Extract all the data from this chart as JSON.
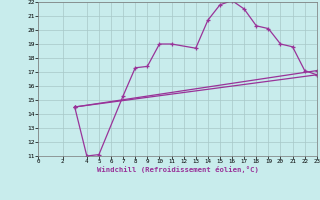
{
  "xlabel": "Windchill (Refroidissement éolien,°C)",
  "bg_color": "#c8ecec",
  "grid_color": "#a8c8c8",
  "line_color": "#993399",
  "xlim": [
    0,
    23
  ],
  "ylim": [
    11,
    22
  ],
  "xticks": [
    0,
    2,
    4,
    5,
    6,
    7,
    8,
    9,
    10,
    11,
    12,
    13,
    14,
    15,
    16,
    17,
    18,
    19,
    20,
    21,
    22,
    23
  ],
  "yticks": [
    11,
    12,
    13,
    14,
    15,
    16,
    17,
    18,
    19,
    20,
    21,
    22
  ],
  "line1_x": [
    3,
    4,
    5,
    7,
    8,
    9,
    10,
    11,
    13,
    14,
    15,
    16,
    17,
    18,
    19,
    20,
    21,
    22,
    23
  ],
  "line1_y": [
    14.5,
    11.0,
    11.1,
    15.3,
    17.3,
    17.4,
    19.0,
    19.0,
    18.7,
    20.7,
    21.8,
    22.1,
    21.5,
    20.3,
    20.1,
    19.0,
    18.8,
    17.1,
    16.8
  ],
  "line2_x": [
    3,
    23
  ],
  "line2_y": [
    14.5,
    16.8
  ],
  "line3_x": [
    3,
    23
  ],
  "line3_y": [
    14.5,
    17.1
  ]
}
